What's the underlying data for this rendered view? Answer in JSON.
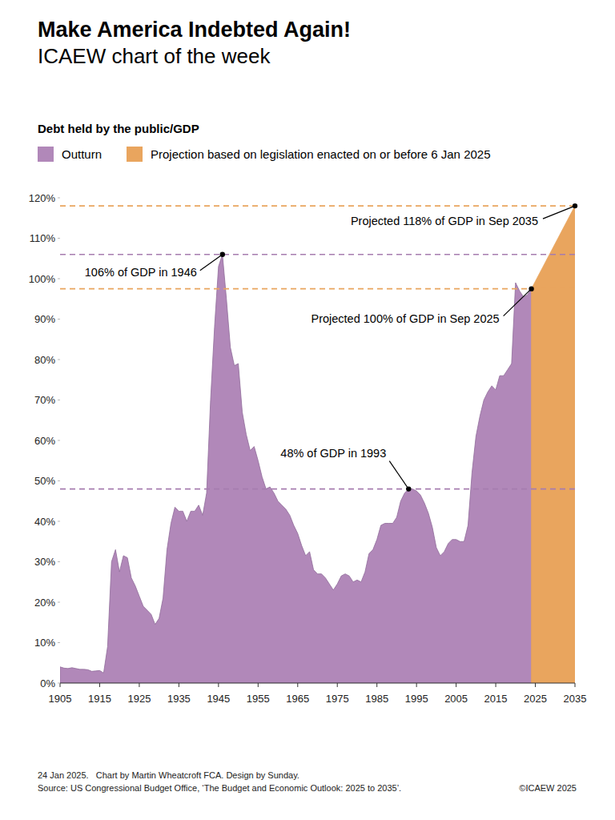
{
  "chart_data": {
    "type": "area",
    "title": "Make America Indebted Again!",
    "subtitle": "ICAEW chart of the week",
    "y_label": "Debt held by the public/GDP",
    "legend": "top",
    "grid": false,
    "xlim": [
      1905,
      2035
    ],
    "xticks": [
      1905,
      1915,
      1925,
      1935,
      1945,
      1955,
      1965,
      1975,
      1985,
      1995,
      2005,
      2015,
      2025,
      2035
    ],
    "ylim": [
      0,
      120
    ],
    "yticks": [
      {
        "value": 0,
        "label": "0%"
      },
      {
        "value": 10,
        "label": "10%"
      },
      {
        "value": 20,
        "label": "20%"
      },
      {
        "value": 30,
        "label": "30%"
      },
      {
        "value": 40,
        "label": "40%"
      },
      {
        "value": 50,
        "label": "50%"
      },
      {
        "value": 60,
        "label": "60%"
      },
      {
        "value": 70,
        "label": "70%"
      },
      {
        "value": 80,
        "label": "80%"
      },
      {
        "value": 90,
        "label": "90%"
      },
      {
        "value": 100,
        "label": "100%"
      },
      {
        "value": 110,
        "label": "110%"
      },
      {
        "value": 120,
        "label": "120%"
      }
    ],
    "series": [
      {
        "name": "Outturn",
        "color": "#b188b9",
        "x": [
          1905,
          1906,
          1907,
          1908,
          1909,
          1910,
          1911,
          1912,
          1913,
          1914,
          1915,
          1916,
          1917,
          1918,
          1919,
          1920,
          1921,
          1922,
          1923,
          1924,
          1925,
          1926,
          1927,
          1928,
          1929,
          1930,
          1931,
          1932,
          1933,
          1934,
          1935,
          1936,
          1937,
          1938,
          1939,
          1940,
          1941,
          1942,
          1943,
          1944,
          1945,
          1946,
          1947,
          1948,
          1949,
          1950,
          1951,
          1952,
          1953,
          1954,
          1955,
          1956,
          1957,
          1958,
          1959,
          1960,
          1961,
          1962,
          1963,
          1964,
          1965,
          1966,
          1967,
          1968,
          1969,
          1970,
          1971,
          1972,
          1973,
          1974,
          1975,
          1976,
          1977,
          1978,
          1979,
          1980,
          1981,
          1982,
          1983,
          1984,
          1985,
          1986,
          1987,
          1988,
          1989,
          1990,
          1991,
          1992,
          1993,
          1994,
          1995,
          1996,
          1997,
          1998,
          1999,
          2000,
          2001,
          2002,
          2003,
          2004,
          2005,
          2006,
          2007,
          2008,
          2009,
          2010,
          2011,
          2012,
          2013,
          2014,
          2015,
          2016,
          2017,
          2018,
          2019,
          2020,
          2021,
          2022,
          2023,
          2024
        ],
        "values": [
          4,
          3.7,
          3.6,
          3.8,
          3.6,
          3.4,
          3.4,
          3.3,
          2.9,
          3.0,
          3.1,
          2.5,
          9,
          30,
          33,
          27.5,
          31.5,
          31,
          26,
          24,
          21.5,
          19,
          18,
          17,
          14.5,
          16,
          21,
          33,
          39.5,
          43.5,
          42.5,
          42.5,
          40,
          42.5,
          42.5,
          44,
          41.5,
          47,
          70,
          88,
          103,
          106,
          95,
          83,
          78.5,
          79,
          67,
          61.5,
          57.5,
          58.5,
          55,
          51,
          48,
          48.5,
          47,
          45,
          44,
          43,
          41.5,
          39,
          37,
          34,
          31.5,
          32.5,
          28,
          27,
          27,
          26,
          24.5,
          23,
          24.5,
          26.5,
          27,
          26.5,
          25,
          25.5,
          25,
          27.5,
          32,
          33,
          35.5,
          39,
          39.5,
          39.5,
          39.5,
          41,
          45,
          47,
          48,
          48,
          47.5,
          46.5,
          44.5,
          42,
          38.5,
          33.5,
          31.5,
          32.5,
          34.5,
          35.5,
          35.5,
          35,
          35,
          39,
          52,
          61,
          66,
          70,
          72,
          73.5,
          72.5,
          76,
          76,
          77.5,
          79,
          99,
          97,
          95.5,
          96,
          97.5
        ],
        "annotations": [
          {
            "text": "106% of GDP in 1946",
            "x": 1946,
            "y": 106
          },
          {
            "text": "48% of GDP in 1993",
            "x": 1993,
            "y": 48
          }
        ]
      },
      {
        "name": "Projection based on legislation enacted on or before 6 Jan 2025",
        "color": "#e9a55e",
        "x": [
          2024,
          2035
        ],
        "values": [
          97.5,
          118
        ],
        "annotations": [
          {
            "text": "Projected 100% of GDP in Sep 2025",
            "x": 2024,
            "y": 97.5
          },
          {
            "text": "Projected 118% of GDP in Sep 2035",
            "x": 2035,
            "y": 118
          }
        ]
      }
    ],
    "notes": {
      "credit": "24 Jan 2025.   Chart by Martin Wheatcroft FCA. Design by Sunday.",
      "source": "Source: US Congressional Budget Office, ‘The Budget and Economic Outlook: 2025 to 2035’.",
      "copyright": "©ICAEW 2025"
    }
  }
}
